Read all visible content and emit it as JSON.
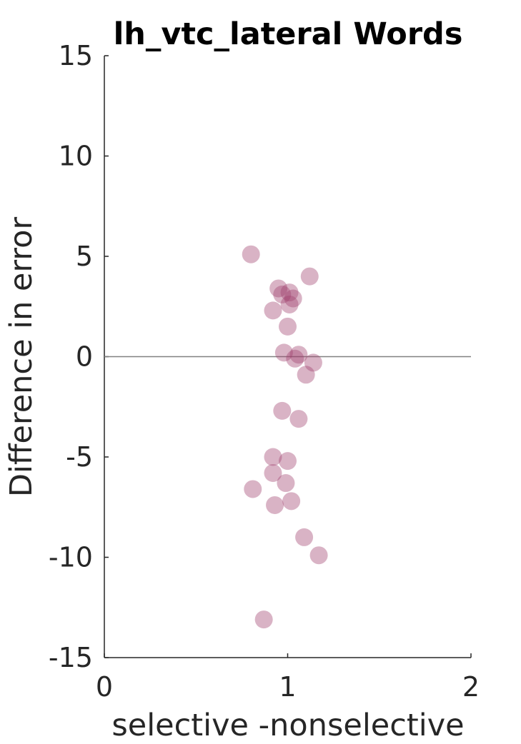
{
  "chart_data": {
    "type": "scatter",
    "title": "lh_vtc_lateral Words",
    "xlabel": "selective -nonselective",
    "ylabel": "Difference in error",
    "xlim": [
      0,
      2
    ],
    "ylim": [
      -15,
      15
    ],
    "xticks": [
      "0",
      "1",
      "2"
    ],
    "yticks": [
      "15",
      "10",
      "5",
      "0",
      "-5",
      "-10",
      "-15"
    ],
    "reference_line_y": 0,
    "marker_color": "#a0426e",
    "marker_opacity": 0.4,
    "grid": false,
    "points": [
      {
        "x": 0.8,
        "y": 5.1
      },
      {
        "x": 1.12,
        "y": 4.0
      },
      {
        "x": 0.95,
        "y": 3.4
      },
      {
        "x": 1.01,
        "y": 3.2
      },
      {
        "x": 0.97,
        "y": 3.1
      },
      {
        "x": 1.03,
        "y": 2.9
      },
      {
        "x": 1.01,
        "y": 2.6
      },
      {
        "x": 0.92,
        "y": 2.3
      },
      {
        "x": 1.0,
        "y": 1.5
      },
      {
        "x": 0.98,
        "y": 0.2
      },
      {
        "x": 1.06,
        "y": 0.1
      },
      {
        "x": 1.04,
        "y": -0.1
      },
      {
        "x": 1.14,
        "y": -0.3
      },
      {
        "x": 1.1,
        "y": -0.9
      },
      {
        "x": 0.97,
        "y": -2.7
      },
      {
        "x": 1.06,
        "y": -3.1
      },
      {
        "x": 0.92,
        "y": -5.0
      },
      {
        "x": 1.0,
        "y": -5.2
      },
      {
        "x": 0.92,
        "y": -5.8
      },
      {
        "x": 0.99,
        "y": -6.3
      },
      {
        "x": 0.81,
        "y": -6.6
      },
      {
        "x": 1.02,
        "y": -7.2
      },
      {
        "x": 0.93,
        "y": -7.4
      },
      {
        "x": 1.09,
        "y": -9.0
      },
      {
        "x": 1.17,
        "y": -9.9
      },
      {
        "x": 0.87,
        "y": -13.1
      }
    ]
  }
}
